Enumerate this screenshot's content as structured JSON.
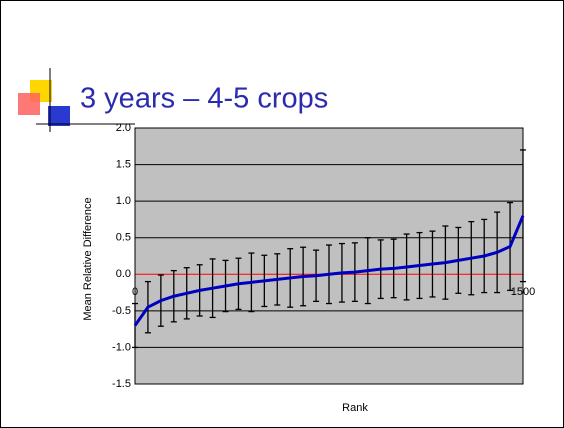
{
  "chart_data": {
    "type": "errorbar_line",
    "title": "3 years – 4-5 crops",
    "xlabel": "Rank",
    "ylabel": "Mean Relative Difference",
    "x": [
      0,
      50,
      100,
      150,
      200,
      250,
      300,
      350,
      400,
      450,
      500,
      550,
      600,
      650,
      700,
      750,
      800,
      850,
      900,
      950,
      1000,
      1050,
      1100,
      1150,
      1200,
      1250,
      1300,
      1350,
      1400,
      1450,
      1500
    ],
    "series": [
      {
        "color": "#0000c0",
        "error_color": "#000000",
        "values": [
          -0.7,
          -0.45,
          -0.36,
          -0.3,
          -0.26,
          -0.22,
          -0.19,
          -0.16,
          -0.13,
          -0.11,
          -0.09,
          -0.07,
          -0.05,
          -0.03,
          -0.02,
          0,
          0.02,
          0.03,
          0.05,
          0.07,
          0.08,
          0.1,
          0.12,
          0.14,
          0.16,
          0.19,
          0.22,
          0.25,
          0.3,
          0.38,
          0.8
        ],
        "errors": [
          0.3,
          0.35,
          0.35,
          0.35,
          0.35,
          0.35,
          0.4,
          0.35,
          0.35,
          0.4,
          0.35,
          0.35,
          0.4,
          0.4,
          0.35,
          0.4,
          0.4,
          0.4,
          0.45,
          0.4,
          0.4,
          0.45,
          0.45,
          0.45,
          0.5,
          0.45,
          0.5,
          0.5,
          0.55,
          0.6,
          0.9
        ]
      }
    ],
    "xlim": [
      0,
      1500
    ],
    "xticks": [
      0,
      1500
    ],
    "ylim": [
      -1.5,
      2.0
    ],
    "yticks": [
      -1.5,
      {
        "value": -1.0,
        "label": "-1.0"
      },
      -0.5,
      {
        "value": 0.0,
        "label": "0.0"
      },
      0.5,
      {
        "value": 1.0,
        "label": "1.0"
      },
      1.5,
      {
        "value": 2.0,
        "label": "2.0"
      }
    ],
    "grid": true,
    "grid_color": "#000000",
    "zero_line_color": "#ff0000",
    "plot_background": "#c0c0c0"
  }
}
